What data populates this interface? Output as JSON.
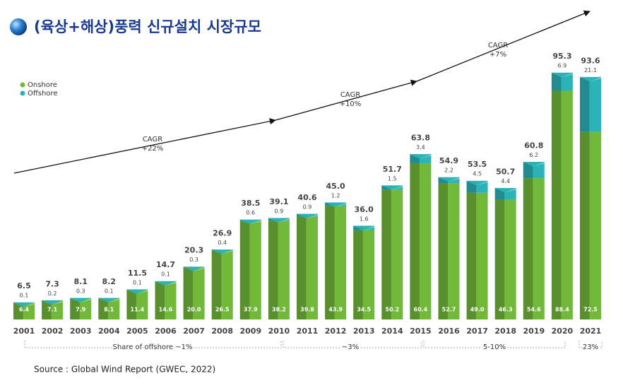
{
  "chart_data": {
    "type": "bar",
    "stacked": true,
    "title": "(육상+해상)풍력 신규설치 시장규모",
    "categories": [
      "2001",
      "2002",
      "2003",
      "2004",
      "2005",
      "2006",
      "2007",
      "2008",
      "2009",
      "2010",
      "2011",
      "2012",
      "2013",
      "2014",
      "2015",
      "2016",
      "2017",
      "2018",
      "2019",
      "2020",
      "2021"
    ],
    "series": [
      {
        "name": "Onshore",
        "color": "#72b83a",
        "values": [
          6.4,
          7.1,
          7.9,
          8.1,
          11.4,
          14.6,
          20.0,
          26.5,
          37.9,
          38.2,
          39.8,
          43.9,
          34.5,
          50.2,
          60.4,
          52.7,
          49.0,
          46.3,
          54.6,
          88.4,
          72.5
        ],
        "value_labels": [
          "6.4",
          "7.1",
          "7.9",
          "8.1",
          "11.4",
          "14.6",
          "20.0",
          "26.5",
          "37.9",
          "38.2",
          "39.8",
          "43.9",
          "34.5",
          "50.2",
          "60.4",
          "52.7",
          "49.0",
          "46.3",
          "54.6",
          "88.4",
          "72.5"
        ]
      },
      {
        "name": "Offshore",
        "color": "#2cb3b8",
        "values": [
          0.1,
          0.2,
          0.3,
          0.1,
          0.1,
          0.1,
          0.3,
          0.4,
          0.6,
          0.9,
          0.9,
          1.2,
          1.6,
          1.5,
          3.4,
          2.2,
          4.5,
          4.4,
          6.2,
          6.9,
          21.1
        ]
      }
    ],
    "totals": {
      "values": [
        6.5,
        7.3,
        8.1,
        8.2,
        11.5,
        14.7,
        20.3,
        26.9,
        38.5,
        39.1,
        40.6,
        45.0,
        36.0,
        51.7,
        63.8,
        54.9,
        53.5,
        50.7,
        60.8,
        95.3,
        93.6
      ],
      "value_labels": [
        "6.5",
        "7.3",
        "8.1",
        "8.2",
        "11.5",
        "14.7",
        "20.3",
        "26.9",
        "38.5",
        "39.1",
        "40.6",
        "45.0",
        "36.0",
        "51.7",
        "63.8",
        "54.9",
        "53.5",
        "50.7",
        "60.8",
        "95.3",
        "93.6"
      ]
    },
    "annotations": [
      {
        "label": "CAGR",
        "value": "+22%"
      },
      {
        "label": "CAGR",
        "value": "+10%"
      },
      {
        "label": "CAGR",
        "value": "+7%"
      }
    ],
    "offshore_share": [
      "Share of offshore ~1%",
      "~3%",
      "5-10%",
      "23%"
    ],
    "source": "Source : Global Wind Report (GWEC, 2022)"
  }
}
